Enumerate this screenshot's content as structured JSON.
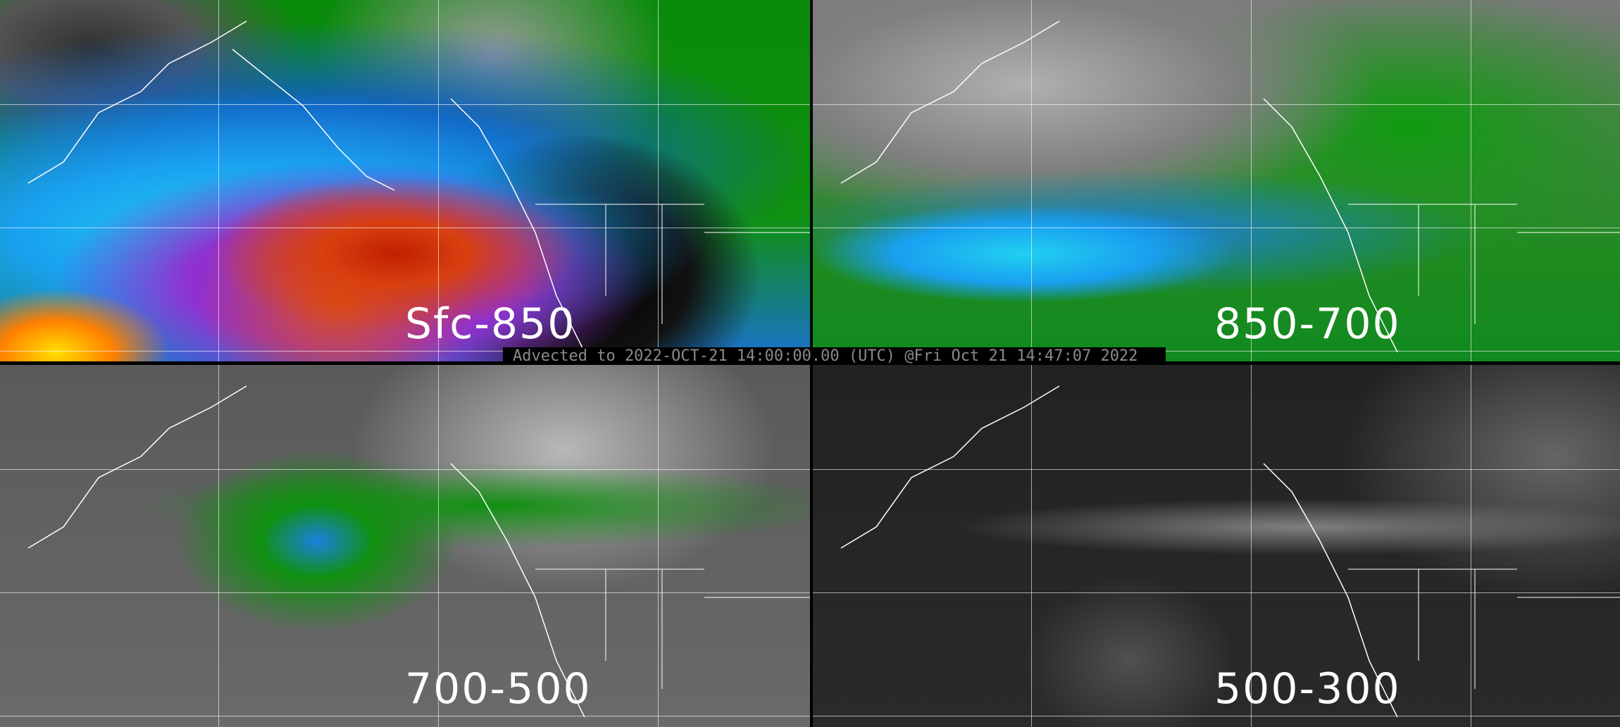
{
  "panels": [
    {
      "label": "Sfc-850",
      "palette": [
        "#ffe000",
        "#d84010",
        "#8a2ad8",
        "#20d0f0",
        "#1a70d0",
        "#0a8a0a",
        "#9a9a9a",
        "#000000"
      ]
    },
    {
      "label": "850-700",
      "palette": [
        "#20d0f0",
        "#1a80e0",
        "#109010",
        "#b0b0b0"
      ]
    },
    {
      "label": "700-500",
      "palette": [
        "#1a80e0",
        "#109010",
        "#b8b8b8",
        "#5a5a5a"
      ]
    },
    {
      "label": "500-300",
      "palette": [
        "#808080",
        "#2a2a2a"
      ]
    }
  ],
  "timestamp": "Advected to 2022-OCT-21 14:00:00.00 (UTC) @Fri Oct 21 14:47:07 2022",
  "overlay": {
    "coastline_color": "#ffffff",
    "graticule": "dotted-white"
  }
}
